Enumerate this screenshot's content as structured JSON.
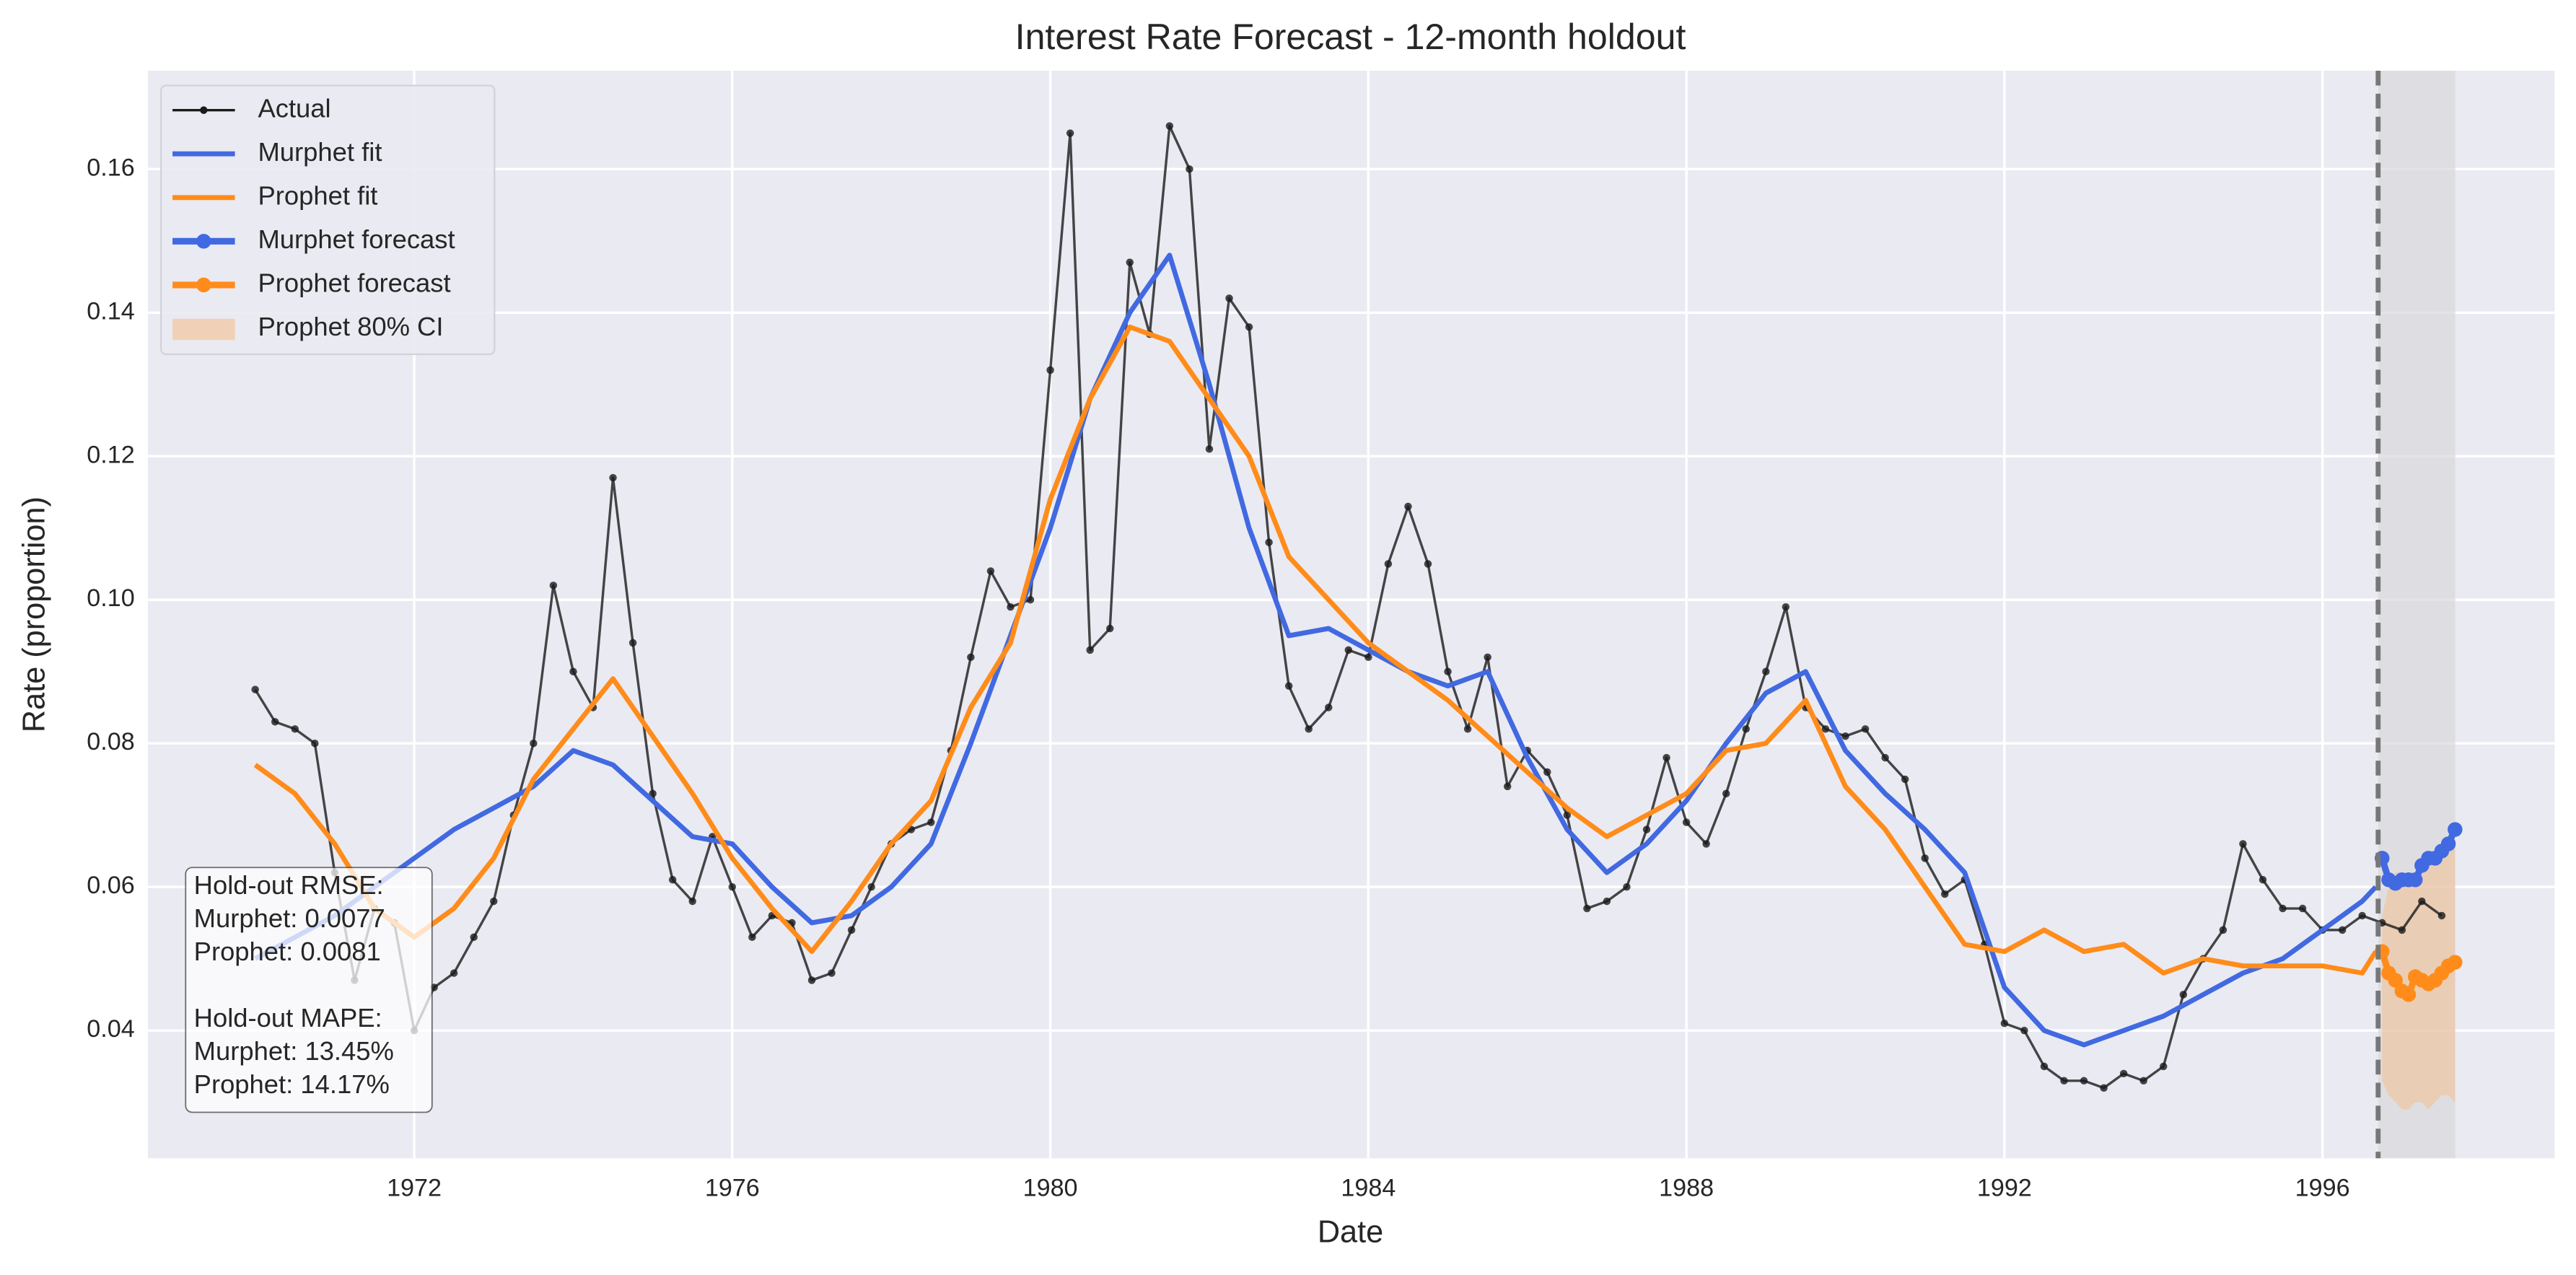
{
  "chart_data": {
    "type": "line",
    "title": "Interest Rate Forecast - 12-month holdout",
    "x_label": "Date",
    "y_label": "Rate (proportion)",
    "xlim": [
      1968.65,
      1998.92
    ],
    "ylim": [
      0.0222,
      0.1737
    ],
    "xticks": [
      1972,
      1976,
      1980,
      1984,
      1988,
      1992,
      1996
    ],
    "yticks": [
      0.04,
      0.06,
      0.08,
      {
        "value": 0.1,
        "label": "0.10"
      },
      0.12,
      0.14,
      0.16
    ],
    "grid": true,
    "legend": "upper left",
    "holdout_start": 1996.7,
    "holdout_end": 1997.67,
    "series": [
      {
        "name": "Actual",
        "color": "#1a1a1a",
        "width": 1.5,
        "marker": true,
        "x": [
          1970,
          1970.25,
          1970.5,
          1970.75,
          1971,
          1971.25,
          1971.5,
          1971.75,
          1972,
          1972.25,
          1972.5,
          1972.75,
          1973,
          1973.25,
          1973.5,
          1973.75,
          1974,
          1974.25,
          1974.5,
          1974.75,
          1975,
          1975.25,
          1975.5,
          1975.75,
          1976,
          1976.25,
          1976.5,
          1976.75,
          1977,
          1977.25,
          1977.5,
          1977.75,
          1978,
          1978.25,
          1978.5,
          1978.75,
          1979,
          1979.25,
          1979.5,
          1979.75,
          1980,
          1980.25,
          1980.5,
          1980.75,
          1981,
          1981.25,
          1981.5,
          1981.75,
          1982,
          1982.25,
          1982.5,
          1982.75,
          1983,
          1983.25,
          1983.5,
          1983.75,
          1984,
          1984.25,
          1984.5,
          1984.75,
          1985,
          1985.25,
          1985.5,
          1985.75,
          1986,
          1986.25,
          1986.5,
          1986.75,
          1987,
          1987.25,
          1987.5,
          1987.75,
          1988,
          1988.25,
          1988.5,
          1988.75,
          1989,
          1989.25,
          1989.5,
          1989.75,
          1990,
          1990.25,
          1990.5,
          1990.75,
          1991,
          1991.25,
          1991.5,
          1991.75,
          1992,
          1992.25,
          1992.5,
          1992.75,
          1993,
          1993.25,
          1993.5,
          1993.75,
          1994,
          1994.25,
          1994.5,
          1994.75,
          1995,
          1995.25,
          1995.5,
          1995.75,
          1996,
          1996.25,
          1996.5,
          1996.75,
          1997,
          1997.25,
          1997.5
        ],
        "values": [
          0.0875,
          0.083,
          0.082,
          0.08,
          0.062,
          0.047,
          0.057,
          0.055,
          0.04,
          0.046,
          0.048,
          0.053,
          0.058,
          0.07,
          0.08,
          0.102,
          0.09,
          0.085,
          0.117,
          0.094,
          0.073,
          0.061,
          0.058,
          0.067,
          0.06,
          0.053,
          0.056,
          0.055,
          0.047,
          0.048,
          0.054,
          0.06,
          0.066,
          0.068,
          0.069,
          0.079,
          0.092,
          0.104,
          0.099,
          0.1,
          0.132,
          0.165,
          0.093,
          0.096,
          0.147,
          0.137,
          0.166,
          0.16,
          0.121,
          0.142,
          0.138,
          0.108,
          0.088,
          0.082,
          0.085,
          0.093,
          0.092,
          0.105,
          0.113,
          0.105,
          0.09,
          0.082,
          0.092,
          0.074,
          0.079,
          0.076,
          0.07,
          0.057,
          0.058,
          0.06,
          0.068,
          0.078,
          0.069,
          0.066,
          0.073,
          0.082,
          0.09,
          0.099,
          0.085,
          0.082,
          0.081,
          0.082,
          0.078,
          0.075,
          0.064,
          0.059,
          0.061,
          0.052,
          0.041,
          0.04,
          0.035,
          0.033,
          0.033,
          0.032,
          0.034,
          0.033,
          0.035,
          0.045,
          0.05,
          0.054,
          0.066,
          0.061,
          0.057,
          0.057,
          0.054,
          0.054,
          0.056,
          0.055,
          0.054,
          0.058,
          0.056
        ]
      },
      {
        "name": "Murphet fit",
        "color": "#4169e1",
        "width": 3,
        "marker": false,
        "x": [
          1970,
          1970.5,
          1971,
          1971.5,
          1972,
          1972.5,
          1973,
          1973.5,
          1974,
          1974.5,
          1975,
          1975.5,
          1976,
          1976.5,
          1977,
          1977.5,
          1978,
          1978.5,
          1979,
          1979.5,
          1980,
          1980.5,
          1981,
          1981.5,
          1982,
          1982.5,
          1983,
          1983.5,
          1984,
          1984.5,
          1985,
          1985.5,
          1986,
          1986.5,
          1987,
          1987.5,
          1988,
          1988.5,
          1989,
          1989.5,
          1990,
          1990.5,
          1991,
          1991.5,
          1992,
          1992.5,
          1993,
          1993.5,
          1994,
          1994.5,
          1995,
          1995.5,
          1996,
          1996.5,
          1996.67
        ],
        "values": [
          0.05,
          0.053,
          0.056,
          0.06,
          0.064,
          0.068,
          0.071,
          0.074,
          0.079,
          0.077,
          0.072,
          0.067,
          0.066,
          0.06,
          0.055,
          0.056,
          0.06,
          0.066,
          0.08,
          0.095,
          0.11,
          0.128,
          0.14,
          0.148,
          0.13,
          0.11,
          0.095,
          0.096,
          0.093,
          0.09,
          0.088,
          0.09,
          0.078,
          0.068,
          0.062,
          0.066,
          0.072,
          0.08,
          0.087,
          0.09,
          0.079,
          0.073,
          0.068,
          0.062,
          0.046,
          0.04,
          0.038,
          0.04,
          0.042,
          0.045,
          0.048,
          0.05,
          0.054,
          0.058,
          0.06
        ]
      },
      {
        "name": "Prophet fit",
        "color": "#ff8c1a",
        "width": 3,
        "marker": false,
        "x": [
          1970,
          1970.5,
          1971,
          1971.5,
          1972,
          1972.5,
          1973,
          1973.5,
          1974,
          1974.5,
          1975,
          1975.5,
          1976,
          1976.5,
          1977,
          1977.5,
          1978,
          1978.5,
          1979,
          1979.5,
          1980,
          1980.5,
          1981,
          1981.5,
          1982,
          1982.5,
          1983,
          1983.5,
          1984,
          1984.5,
          1985,
          1985.5,
          1986,
          1986.5,
          1987,
          1987.5,
          1988,
          1988.5,
          1989,
          1989.5,
          1990,
          1990.5,
          1991,
          1991.5,
          1992,
          1992.5,
          1993,
          1993.5,
          1994,
          1994.5,
          1995,
          1995.5,
          1996,
          1996.5,
          1996.67
        ],
        "values": [
          0.077,
          0.073,
          0.066,
          0.057,
          0.053,
          0.057,
          0.064,
          0.075,
          0.082,
          0.089,
          0.081,
          0.073,
          0.064,
          0.057,
          0.051,
          0.058,
          0.066,
          0.072,
          0.085,
          0.094,
          0.114,
          0.128,
          0.138,
          0.136,
          0.128,
          0.12,
          0.106,
          0.1,
          0.094,
          0.09,
          0.086,
          0.081,
          0.076,
          0.071,
          0.067,
          0.07,
          0.073,
          0.079,
          0.08,
          0.086,
          0.074,
          0.068,
          0.06,
          0.052,
          0.051,
          0.054,
          0.051,
          0.052,
          0.048,
          0.05,
          0.049,
          0.049,
          0.049,
          0.048,
          0.051
        ]
      },
      {
        "name": "Murphet forecast",
        "color": "#4169e1",
        "width": 4,
        "marker": true,
        "x": [
          1996.75,
          1996.833,
          1996.917,
          1997,
          1997.083,
          1997.167,
          1997.25,
          1997.333,
          1997.417,
          1997.5,
          1997.583,
          1997.667
        ],
        "values": [
          0.064,
          0.061,
          0.0605,
          0.061,
          0.061,
          0.061,
          0.063,
          0.064,
          0.064,
          0.065,
          0.066,
          0.068
        ]
      },
      {
        "name": "Prophet forecast",
        "color": "#ff8c1a",
        "width": 4,
        "marker": true,
        "x": [
          1996.75,
          1996.833,
          1996.917,
          1997,
          1997.083,
          1997.167,
          1997.25,
          1997.333,
          1997.417,
          1997.5,
          1997.583,
          1997.667
        ],
        "values": [
          0.051,
          0.048,
          0.047,
          0.0455,
          0.045,
          0.0475,
          0.047,
          0.0465,
          0.047,
          0.048,
          0.049,
          0.0495
        ]
      },
      {
        "name": "Prophet 80% CI",
        "color": "#f4c08f",
        "band": true,
        "x": [
          1996.75,
          1996.833,
          1996.917,
          1997,
          1997.083,
          1997.167,
          1997.25,
          1997.333,
          1997.417,
          1997.5,
          1997.583,
          1997.667
        ],
        "lower": [
          0.033,
          0.031,
          0.03,
          0.029,
          0.029,
          0.03,
          0.03,
          0.029,
          0.03,
          0.031,
          0.031,
          0.03
        ],
        "upper": [
          0.056,
          0.06,
          0.062,
          0.062,
          0.061,
          0.062,
          0.063,
          0.064,
          0.064,
          0.065,
          0.066,
          0.067
        ]
      }
    ],
    "annotation": {
      "groups": [
        [
          "Hold-out RMSE:",
          "Murphet: 0.0077",
          "Prophet: 0.0081"
        ],
        [
          "Hold-out MAPE:",
          "Murphet: 13.45%",
          "Prophet: 14.17%"
        ]
      ]
    }
  }
}
